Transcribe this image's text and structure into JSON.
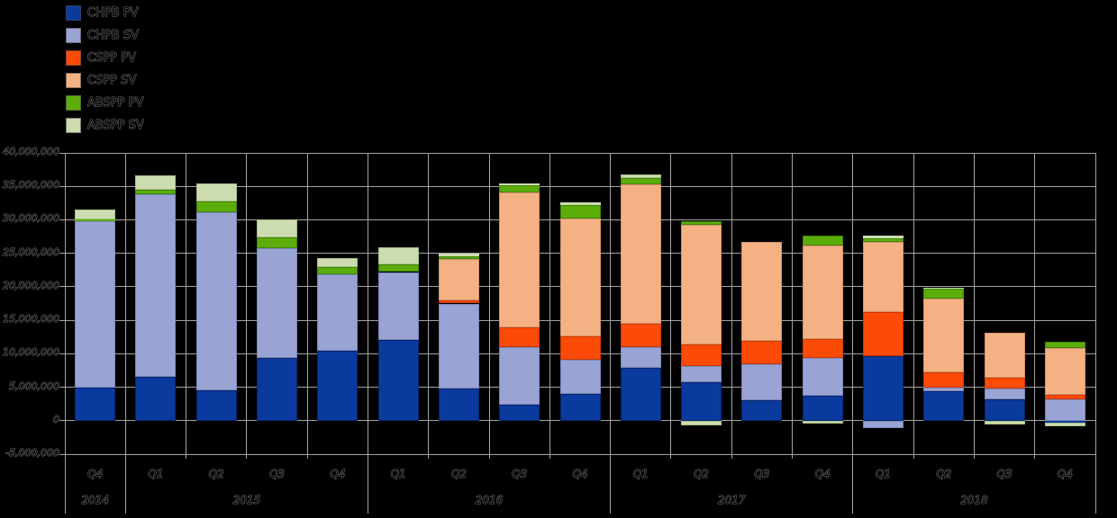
{
  "app": {
    "background": "#000000"
  },
  "colors": {
    "grid": "#a3a3a3",
    "axis_text_stroke": "#7a7a7a",
    "background": "#000000"
  },
  "chart_data": {
    "type": "bar",
    "stacked": true,
    "title": "",
    "xlabel": "",
    "ylabel": "",
    "grid": true,
    "legend_position": "top-left",
    "y_axis": {
      "min": -5000000,
      "max": 40000000,
      "step": 5000000
    },
    "x_quarters": [
      "Q4",
      "Q1",
      "Q2",
      "Q3",
      "Q4",
      "Q1",
      "Q2",
      "Q3",
      "Q4",
      "Q1",
      "Q2",
      "Q3",
      "Q4",
      "Q1",
      "Q2",
      "Q3",
      "Q4"
    ],
    "year_groups": [
      {
        "label": "2014",
        "start": 0,
        "span": 1
      },
      {
        "label": "2015",
        "start": 1,
        "span": 4
      },
      {
        "label": "2016",
        "start": 5,
        "span": 4
      },
      {
        "label": "2017",
        "start": 9,
        "span": 4
      },
      {
        "label": "2018",
        "start": 13,
        "span": 4
      }
    ],
    "series": [
      {
        "name": "CHPB PV",
        "color": "#0b3a9e",
        "border": "#07266b",
        "values": [
          5000000,
          6600000,
          4500000,
          9350000,
          10450000,
          12000000,
          4800000,
          2350000,
          4000000,
          7950000,
          5800000,
          3100000,
          3700000,
          9600000,
          4450000,
          3250000,
          -250000
        ]
      },
      {
        "name": "CHPB SV",
        "color": "#99a3d4",
        "border": "#7c87b8",
        "values": [
          24750000,
          27200000,
          26600000,
          16450000,
          11400000,
          10200000,
          12700000,
          8600000,
          5050000,
          3000000,
          2350000,
          5350000,
          5650000,
          -1100000,
          450000,
          1550000,
          3250000
        ]
      },
      {
        "name": "CSPP PV",
        "color": "#fc4a07",
        "border": "#cc3902",
        "values": [
          0,
          0,
          0,
          0,
          0,
          0,
          500000,
          2950000,
          3550000,
          3550000,
          3250000,
          3500000,
          2800000,
          6600000,
          2350000,
          1650000,
          550000
        ]
      },
      {
        "name": "CSPP SV",
        "color": "#f4b183",
        "border": "#d6946a",
        "values": [
          0,
          0,
          0,
          0,
          0,
          0,
          6100000,
          20200000,
          17650000,
          20750000,
          17850000,
          14750000,
          14000000,
          10500000,
          10950000,
          6700000,
          7050000
        ]
      },
      {
        "name": "ABSPP PV",
        "color": "#5cad0a",
        "border": "#3f8508",
        "values": [
          300000,
          700000,
          1600000,
          1600000,
          1100000,
          1200000,
          450000,
          1100000,
          2000000,
          950000,
          600000,
          0,
          1500000,
          550000,
          1450000,
          0,
          1000000
        ]
      },
      {
        "name": "ABSPP SV",
        "color": "#cddcb0",
        "border": "#a8bf85",
        "values": [
          1500000,
          2100000,
          2800000,
          2700000,
          1300000,
          2550000,
          350000,
          300000,
          400000,
          550000,
          -750000,
          0,
          -500000,
          350000,
          200000,
          -550000,
          -600000
        ]
      }
    ]
  }
}
